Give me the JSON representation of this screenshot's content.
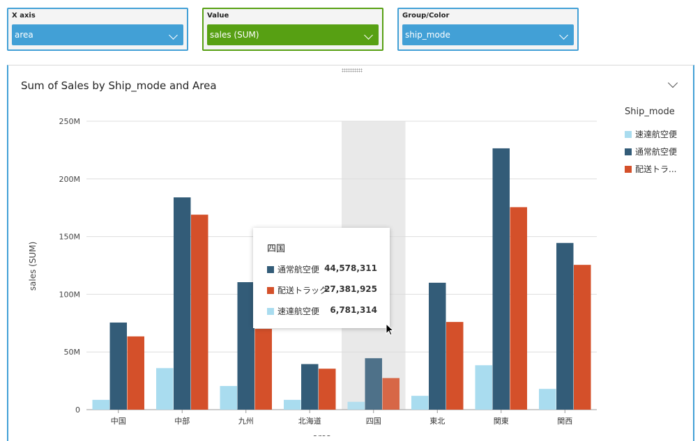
{
  "wells": [
    {
      "label": "X axis",
      "value": "area"
    },
    {
      "label": "Value",
      "value": "sales (SUM)"
    },
    {
      "label": "Group/Color",
      "value": "ship_mode"
    }
  ],
  "colors": {
    "accent_blue": "#42a0d6",
    "accent_green": "#57a013"
  },
  "chart_data": {
    "type": "bar",
    "title": "Sum of Sales by Ship_mode and Area",
    "xlabel": "area",
    "ylabel": "sales (SUM)",
    "ylim": [
      0,
      250000000
    ],
    "yticks": [
      {
        "value": 0,
        "label": "0"
      },
      {
        "value": 50000000,
        "label": "50M"
      },
      {
        "value": 100000000,
        "label": "100M"
      },
      {
        "value": 150000000,
        "label": "150M"
      },
      {
        "value": 200000000,
        "label": "200M"
      },
      {
        "value": 250000000,
        "label": "250M"
      }
    ],
    "grid": true,
    "legend_position": "right",
    "legend_title": "Ship_mode",
    "categories": [
      "中国",
      "中部",
      "九州",
      "北海道",
      "四国",
      "東北",
      "関東",
      "関西"
    ],
    "series": [
      {
        "name": "速達航空便",
        "legend_label": "速達航空便",
        "color": "#a9dcef",
        "values": [
          8500000,
          36000000,
          20500000,
          8500000,
          6781314,
          12000000,
          38500000,
          18000000
        ]
      },
      {
        "name": "通常航空便",
        "legend_label": "通常航空便",
        "color": "#335c78",
        "values": [
          75500000,
          184000000,
          110500000,
          39500000,
          44578311,
          110000000,
          226500000,
          144500000
        ]
      },
      {
        "name": "配送トラック",
        "legend_label": "配送トラ...",
        "color": "#d4502a",
        "values": [
          63500000,
          169000000,
          70000000,
          35500000,
          27381925,
          76000000,
          175500000,
          125500000
        ]
      }
    ],
    "highlighted_category": "四国",
    "tooltip": {
      "title": "四国",
      "rows": [
        {
          "name": "通常航空便",
          "value": "44,578,311",
          "color": "#335c78"
        },
        {
          "name": "配送トラック",
          "value": "27,381,925",
          "color": "#d4502a"
        },
        {
          "name": "速達航空便",
          "value": "6,781,314",
          "color": "#a9dcef"
        }
      ]
    }
  }
}
